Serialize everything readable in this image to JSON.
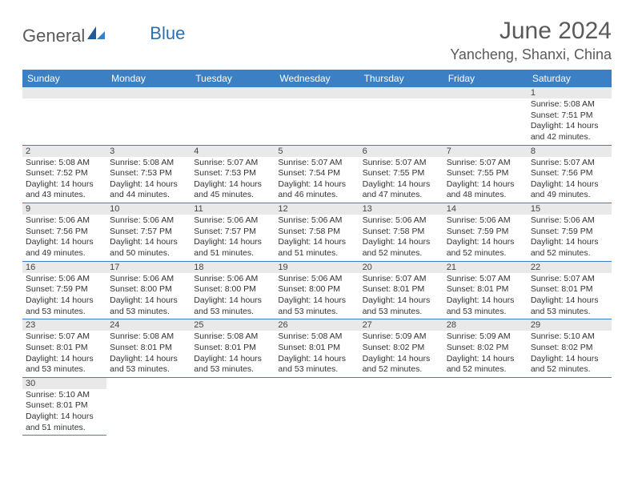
{
  "logo": {
    "general": "General",
    "blue": "Blue"
  },
  "title": "June 2024",
  "location": "Yancheng, Shanxi, China",
  "colors": {
    "header_bg": "#3b7fc4",
    "header_text": "#ffffff",
    "daynum_bg": "#e9e9e9",
    "row_border": "#3b7fc4",
    "logo_blue": "#2f6fb0",
    "title_color": "#5a5a5a"
  },
  "dayNames": [
    "Sunday",
    "Monday",
    "Tuesday",
    "Wednesday",
    "Thursday",
    "Friday",
    "Saturday"
  ],
  "weeks": [
    [
      null,
      null,
      null,
      null,
      null,
      null,
      {
        "n": "1",
        "sr": "5:08 AM",
        "ss": "7:51 PM",
        "dh": "14",
        "dm": "42"
      }
    ],
    [
      {
        "n": "2",
        "sr": "5:08 AM",
        "ss": "7:52 PM",
        "dh": "14",
        "dm": "43"
      },
      {
        "n": "3",
        "sr": "5:08 AM",
        "ss": "7:53 PM",
        "dh": "14",
        "dm": "44"
      },
      {
        "n": "4",
        "sr": "5:07 AM",
        "ss": "7:53 PM",
        "dh": "14",
        "dm": "45"
      },
      {
        "n": "5",
        "sr": "5:07 AM",
        "ss": "7:54 PM",
        "dh": "14",
        "dm": "46"
      },
      {
        "n": "6",
        "sr": "5:07 AM",
        "ss": "7:55 PM",
        "dh": "14",
        "dm": "47"
      },
      {
        "n": "7",
        "sr": "5:07 AM",
        "ss": "7:55 PM",
        "dh": "14",
        "dm": "48"
      },
      {
        "n": "8",
        "sr": "5:07 AM",
        "ss": "7:56 PM",
        "dh": "14",
        "dm": "49"
      }
    ],
    [
      {
        "n": "9",
        "sr": "5:06 AM",
        "ss": "7:56 PM",
        "dh": "14",
        "dm": "49"
      },
      {
        "n": "10",
        "sr": "5:06 AM",
        "ss": "7:57 PM",
        "dh": "14",
        "dm": "50"
      },
      {
        "n": "11",
        "sr": "5:06 AM",
        "ss": "7:57 PM",
        "dh": "14",
        "dm": "51"
      },
      {
        "n": "12",
        "sr": "5:06 AM",
        "ss": "7:58 PM",
        "dh": "14",
        "dm": "51"
      },
      {
        "n": "13",
        "sr": "5:06 AM",
        "ss": "7:58 PM",
        "dh": "14",
        "dm": "52"
      },
      {
        "n": "14",
        "sr": "5:06 AM",
        "ss": "7:59 PM",
        "dh": "14",
        "dm": "52"
      },
      {
        "n": "15",
        "sr": "5:06 AM",
        "ss": "7:59 PM",
        "dh": "14",
        "dm": "52"
      }
    ],
    [
      {
        "n": "16",
        "sr": "5:06 AM",
        "ss": "7:59 PM",
        "dh": "14",
        "dm": "53"
      },
      {
        "n": "17",
        "sr": "5:06 AM",
        "ss": "8:00 PM",
        "dh": "14",
        "dm": "53"
      },
      {
        "n": "18",
        "sr": "5:06 AM",
        "ss": "8:00 PM",
        "dh": "14",
        "dm": "53"
      },
      {
        "n": "19",
        "sr": "5:06 AM",
        "ss": "8:00 PM",
        "dh": "14",
        "dm": "53"
      },
      {
        "n": "20",
        "sr": "5:07 AM",
        "ss": "8:01 PM",
        "dh": "14",
        "dm": "53"
      },
      {
        "n": "21",
        "sr": "5:07 AM",
        "ss": "8:01 PM",
        "dh": "14",
        "dm": "53"
      },
      {
        "n": "22",
        "sr": "5:07 AM",
        "ss": "8:01 PM",
        "dh": "14",
        "dm": "53"
      }
    ],
    [
      {
        "n": "23",
        "sr": "5:07 AM",
        "ss": "8:01 PM",
        "dh": "14",
        "dm": "53"
      },
      {
        "n": "24",
        "sr": "5:08 AM",
        "ss": "8:01 PM",
        "dh": "14",
        "dm": "53"
      },
      {
        "n": "25",
        "sr": "5:08 AM",
        "ss": "8:01 PM",
        "dh": "14",
        "dm": "53"
      },
      {
        "n": "26",
        "sr": "5:08 AM",
        "ss": "8:01 PM",
        "dh": "14",
        "dm": "53"
      },
      {
        "n": "27",
        "sr": "5:09 AM",
        "ss": "8:02 PM",
        "dh": "14",
        "dm": "52"
      },
      {
        "n": "28",
        "sr": "5:09 AM",
        "ss": "8:02 PM",
        "dh": "14",
        "dm": "52"
      },
      {
        "n": "29",
        "sr": "5:10 AM",
        "ss": "8:02 PM",
        "dh": "14",
        "dm": "52"
      }
    ],
    [
      {
        "n": "30",
        "sr": "5:10 AM",
        "ss": "8:01 PM",
        "dh": "14",
        "dm": "51"
      },
      null,
      null,
      null,
      null,
      null,
      null
    ]
  ]
}
